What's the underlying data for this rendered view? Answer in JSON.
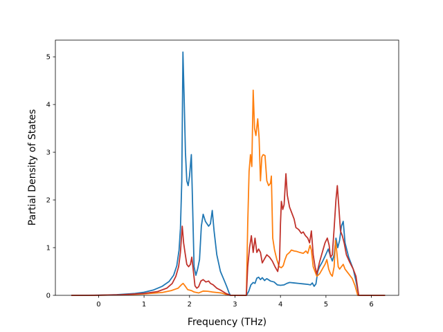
{
  "chart_data": {
    "type": "line",
    "title": "",
    "xlabel": "Frequency (THz)",
    "ylabel": "Partial Density of States",
    "xlim": [
      -0.95,
      6.6
    ],
    "ylim": [
      0,
      5.35
    ],
    "xticks": [
      0,
      1,
      2,
      3,
      4,
      5,
      6
    ],
    "yticks": [
      0,
      1,
      2,
      3,
      4,
      5
    ],
    "grid": false,
    "legend": "none",
    "series": [
      {
        "color": "#1f77b4",
        "points": [
          [
            -0.6,
            0
          ],
          [
            -0.2,
            0.0
          ],
          [
            0,
            0.004
          ],
          [
            0.4,
            0.015
          ],
          [
            0.8,
            0.04
          ],
          [
            1.0,
            0.065
          ],
          [
            1.2,
            0.11
          ],
          [
            1.4,
            0.19
          ],
          [
            1.55,
            0.29
          ],
          [
            1.65,
            0.42
          ],
          [
            1.72,
            0.62
          ],
          [
            1.77,
            0.95
          ],
          [
            1.8,
            1.4
          ],
          [
            1.83,
            2.4
          ],
          [
            1.855,
            5.1
          ],
          [
            1.88,
            4.2
          ],
          [
            1.91,
            3.0
          ],
          [
            1.94,
            2.4
          ],
          [
            1.97,
            2.3
          ],
          [
            2.0,
            2.5
          ],
          [
            2.04,
            2.95
          ],
          [
            2.07,
            1.8
          ],
          [
            2.1,
            0.6
          ],
          [
            2.14,
            0.42
          ],
          [
            2.18,
            0.56
          ],
          [
            2.22,
            0.75
          ],
          [
            2.26,
            1.45
          ],
          [
            2.3,
            1.7
          ],
          [
            2.35,
            1.55
          ],
          [
            2.42,
            1.45
          ],
          [
            2.46,
            1.5
          ],
          [
            2.5,
            1.78
          ],
          [
            2.54,
            1.35
          ],
          [
            2.6,
            0.85
          ],
          [
            2.68,
            0.5
          ],
          [
            2.76,
            0.32
          ],
          [
            2.82,
            0.18
          ],
          [
            2.87,
            0.05
          ],
          [
            2.9,
            0.0
          ],
          [
            3.25,
            0.0
          ],
          [
            3.3,
            0.08
          ],
          [
            3.35,
            0.22
          ],
          [
            3.4,
            0.27
          ],
          [
            3.44,
            0.25
          ],
          [
            3.48,
            0.36
          ],
          [
            3.52,
            0.38
          ],
          [
            3.56,
            0.33
          ],
          [
            3.6,
            0.37
          ],
          [
            3.65,
            0.31
          ],
          [
            3.7,
            0.35
          ],
          [
            3.78,
            0.3
          ],
          [
            3.86,
            0.28
          ],
          [
            3.93,
            0.22
          ],
          [
            4.0,
            0.21
          ],
          [
            4.08,
            0.22
          ],
          [
            4.14,
            0.25
          ],
          [
            4.2,
            0.27
          ],
          [
            4.3,
            0.26
          ],
          [
            4.4,
            0.25
          ],
          [
            4.5,
            0.24
          ],
          [
            4.6,
            0.23
          ],
          [
            4.66,
            0.22
          ],
          [
            4.7,
            0.26
          ],
          [
            4.74,
            0.19
          ],
          [
            4.78,
            0.24
          ],
          [
            4.82,
            0.5
          ],
          [
            4.86,
            0.6
          ],
          [
            4.92,
            0.7
          ],
          [
            4.98,
            0.82
          ],
          [
            5.05,
            0.97
          ],
          [
            5.1,
            0.82
          ],
          [
            5.14,
            0.72
          ],
          [
            5.18,
            0.85
          ],
          [
            5.22,
            1.2
          ],
          [
            5.26,
            1.0
          ],
          [
            5.3,
            1.15
          ],
          [
            5.34,
            1.45
          ],
          [
            5.38,
            1.55
          ],
          [
            5.42,
            1.1
          ],
          [
            5.5,
            0.8
          ],
          [
            5.6,
            0.55
          ],
          [
            5.66,
            0.3
          ],
          [
            5.72,
            0.0
          ],
          [
            6.3,
            0.0
          ]
        ]
      },
      {
        "color": "#ff7f0e",
        "points": [
          [
            -0.6,
            0
          ],
          [
            0,
            0.002
          ],
          [
            0.5,
            0.01
          ],
          [
            1.0,
            0.03
          ],
          [
            1.4,
            0.06
          ],
          [
            1.6,
            0.1
          ],
          [
            1.75,
            0.15
          ],
          [
            1.82,
            0.22
          ],
          [
            1.86,
            0.25
          ],
          [
            1.9,
            0.2
          ],
          [
            1.96,
            0.12
          ],
          [
            2.04,
            0.1
          ],
          [
            2.1,
            0.07
          ],
          [
            2.2,
            0.05
          ],
          [
            2.3,
            0.09
          ],
          [
            2.4,
            0.085
          ],
          [
            2.5,
            0.07
          ],
          [
            2.6,
            0.06
          ],
          [
            2.7,
            0.05
          ],
          [
            2.8,
            0.02
          ],
          [
            2.9,
            0.0
          ],
          [
            3.25,
            0.0
          ],
          [
            3.28,
            1.5
          ],
          [
            3.31,
            2.6
          ],
          [
            3.34,
            2.95
          ],
          [
            3.37,
            2.7
          ],
          [
            3.4,
            4.3
          ],
          [
            3.43,
            3.5
          ],
          [
            3.46,
            3.35
          ],
          [
            3.5,
            3.7
          ],
          [
            3.53,
            3.3
          ],
          [
            3.56,
            2.4
          ],
          [
            3.59,
            2.9
          ],
          [
            3.62,
            2.95
          ],
          [
            3.66,
            2.93
          ],
          [
            3.7,
            2.4
          ],
          [
            3.74,
            2.3
          ],
          [
            3.78,
            2.35
          ],
          [
            3.8,
            2.5
          ],
          [
            3.83,
            1.2
          ],
          [
            3.87,
            0.95
          ],
          [
            3.92,
            0.75
          ],
          [
            3.97,
            0.6
          ],
          [
            4.02,
            0.58
          ],
          [
            4.06,
            0.62
          ],
          [
            4.1,
            0.75
          ],
          [
            4.14,
            0.85
          ],
          [
            4.2,
            0.9
          ],
          [
            4.24,
            0.95
          ],
          [
            4.3,
            0.93
          ],
          [
            4.36,
            0.92
          ],
          [
            4.42,
            0.9
          ],
          [
            4.5,
            0.88
          ],
          [
            4.56,
            0.93
          ],
          [
            4.6,
            0.88
          ],
          [
            4.65,
            1.05
          ],
          [
            4.68,
            0.95
          ],
          [
            4.72,
            0.6
          ],
          [
            4.76,
            0.5
          ],
          [
            4.8,
            0.4
          ],
          [
            4.86,
            0.45
          ],
          [
            4.92,
            0.55
          ],
          [
            4.98,
            0.65
          ],
          [
            5.02,
            0.75
          ],
          [
            5.06,
            0.55
          ],
          [
            5.1,
            0.45
          ],
          [
            5.14,
            0.4
          ],
          [
            5.18,
            0.6
          ],
          [
            5.21,
            1.15
          ],
          [
            5.24,
            0.9
          ],
          [
            5.27,
            0.6
          ],
          [
            5.3,
            0.55
          ],
          [
            5.34,
            0.6
          ],
          [
            5.38,
            0.65
          ],
          [
            5.42,
            0.55
          ],
          [
            5.5,
            0.45
          ],
          [
            5.58,
            0.35
          ],
          [
            5.64,
            0.2
          ],
          [
            5.7,
            0.0
          ],
          [
            6.3,
            0.0
          ]
        ]
      },
      {
        "color": "#c0322b",
        "points": [
          [
            -0.6,
            0
          ],
          [
            0,
            0.003
          ],
          [
            0.5,
            0.012
          ],
          [
            1.0,
            0.04
          ],
          [
            1.3,
            0.08
          ],
          [
            1.5,
            0.15
          ],
          [
            1.62,
            0.25
          ],
          [
            1.7,
            0.4
          ],
          [
            1.76,
            0.6
          ],
          [
            1.8,
            0.9
          ],
          [
            1.84,
            1.45
          ],
          [
            1.87,
            1.1
          ],
          [
            1.9,
            0.9
          ],
          [
            1.94,
            0.65
          ],
          [
            1.98,
            0.6
          ],
          [
            2.02,
            0.65
          ],
          [
            2.05,
            0.8
          ],
          [
            2.08,
            0.55
          ],
          [
            2.12,
            0.2
          ],
          [
            2.16,
            0.15
          ],
          [
            2.2,
            0.18
          ],
          [
            2.25,
            0.3
          ],
          [
            2.3,
            0.33
          ],
          [
            2.36,
            0.28
          ],
          [
            2.42,
            0.3
          ],
          [
            2.46,
            0.25
          ],
          [
            2.52,
            0.22
          ],
          [
            2.6,
            0.15
          ],
          [
            2.7,
            0.1
          ],
          [
            2.8,
            0.04
          ],
          [
            2.9,
            0.0
          ],
          [
            3.25,
            0.0
          ],
          [
            3.28,
            0.6
          ],
          [
            3.32,
            1.0
          ],
          [
            3.36,
            1.25
          ],
          [
            3.4,
            0.9
          ],
          [
            3.44,
            1.2
          ],
          [
            3.48,
            0.9
          ],
          [
            3.52,
            0.97
          ],
          [
            3.56,
            0.9
          ],
          [
            3.6,
            0.68
          ],
          [
            3.64,
            0.75
          ],
          [
            3.7,
            0.85
          ],
          [
            3.76,
            0.8
          ],
          [
            3.82,
            0.72
          ],
          [
            3.88,
            0.6
          ],
          [
            3.94,
            0.5
          ],
          [
            3.98,
            0.75
          ],
          [
            4.0,
            1.5
          ],
          [
            4.02,
            1.97
          ],
          [
            4.05,
            1.8
          ],
          [
            4.08,
            1.9
          ],
          [
            4.12,
            2.55
          ],
          [
            4.15,
            2.1
          ],
          [
            4.2,
            1.85
          ],
          [
            4.26,
            1.7
          ],
          [
            4.3,
            1.6
          ],
          [
            4.34,
            1.42
          ],
          [
            4.4,
            1.38
          ],
          [
            4.46,
            1.3
          ],
          [
            4.5,
            1.33
          ],
          [
            4.55,
            1.25
          ],
          [
            4.6,
            1.2
          ],
          [
            4.64,
            1.1
          ],
          [
            4.68,
            1.35
          ],
          [
            4.72,
            0.85
          ],
          [
            4.76,
            0.6
          ],
          [
            4.8,
            0.45
          ],
          [
            4.86,
            0.7
          ],
          [
            4.92,
            0.9
          ],
          [
            4.98,
            1.1
          ],
          [
            5.03,
            1.2
          ],
          [
            5.07,
            1.05
          ],
          [
            5.1,
            0.8
          ],
          [
            5.14,
            0.85
          ],
          [
            5.18,
            1.4
          ],
          [
            5.22,
            2.0
          ],
          [
            5.25,
            2.3
          ],
          [
            5.28,
            1.9
          ],
          [
            5.32,
            1.35
          ],
          [
            5.36,
            1.25
          ],
          [
            5.4,
            1.1
          ],
          [
            5.45,
            0.85
          ],
          [
            5.52,
            0.7
          ],
          [
            5.6,
            0.55
          ],
          [
            5.66,
            0.4
          ],
          [
            5.72,
            0.0
          ],
          [
            6.3,
            0.0
          ]
        ]
      }
    ]
  }
}
